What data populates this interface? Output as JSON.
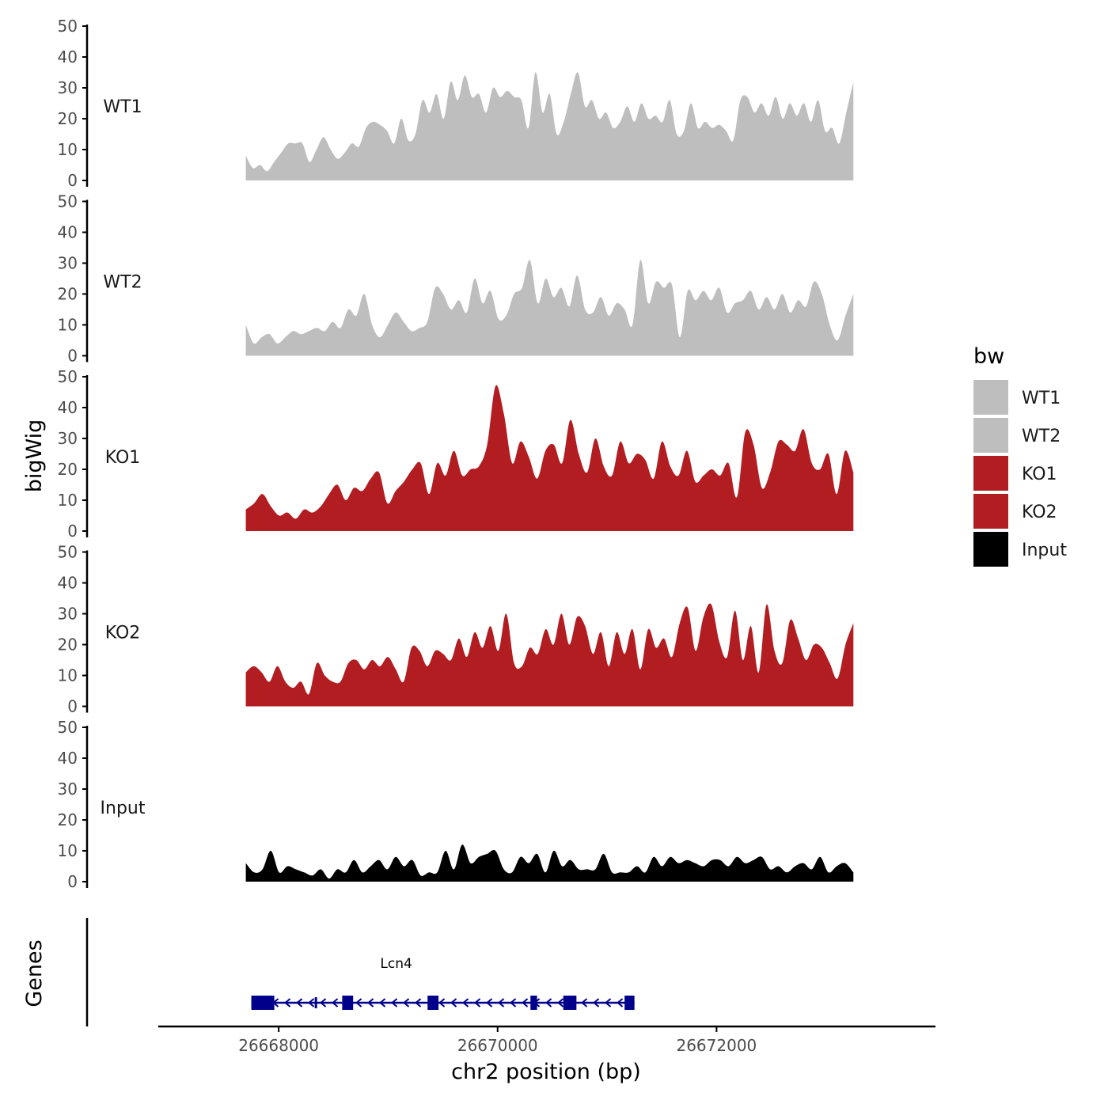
{
  "chart_data": {
    "type": "area",
    "title": "",
    "ylabel": "bigWig",
    "genes_label": "Genes",
    "xlabel": "chr2 position (bp)",
    "xlim": [
      26666900,
      26674000
    ],
    "ylim": [
      0,
      50
    ],
    "yticks": [
      0,
      10,
      20,
      30,
      40,
      50
    ],
    "xticks": [
      26668000,
      26670000,
      26672000
    ],
    "data_range": [
      26667700,
      26673250
    ],
    "legend": {
      "title": "bw",
      "position": "right",
      "entries": [
        {
          "label": "WT1",
          "color": "#bebebe"
        },
        {
          "label": "WT2",
          "color": "#bebebe"
        },
        {
          "label": "KO1",
          "color": "#b21d21"
        },
        {
          "label": "KO2",
          "color": "#b21d21"
        },
        {
          "label": "Input",
          "color": "#000000"
        }
      ]
    },
    "series": [
      {
        "name": "WT1",
        "color": "#bebebe",
        "values": [
          8,
          4,
          5,
          3,
          6,
          9,
          12,
          12,
          12,
          6,
          10,
          14,
          10,
          7,
          9,
          12,
          11,
          17,
          19,
          18,
          16,
          12,
          20,
          13,
          15,
          26,
          22,
          28,
          20,
          32,
          26,
          34,
          27,
          28,
          22,
          30,
          27,
          29,
          27,
          26,
          17,
          35,
          22,
          28,
          15,
          19,
          28,
          35,
          24,
          26,
          20,
          22,
          17,
          19,
          24,
          19,
          25,
          20,
          21,
          19,
          26,
          15,
          16,
          25,
          17,
          19,
          17,
          18,
          16,
          13,
          26,
          27,
          22,
          25,
          21,
          27,
          20,
          25,
          21,
          25,
          19,
          26,
          16,
          17,
          12,
          22,
          32
        ]
      },
      {
        "name": "WT2",
        "color": "#bebebe",
        "values": [
          10,
          4,
          6,
          7,
          4,
          6,
          8,
          7,
          8,
          9,
          8,
          11,
          9,
          15,
          13,
          20,
          10,
          6,
          10,
          14,
          11,
          8,
          9,
          11,
          22,
          20,
          15,
          18,
          14,
          25,
          17,
          21,
          12,
          13,
          20,
          22,
          31,
          17,
          25,
          19,
          22,
          16,
          26,
          15,
          14,
          19,
          13,
          17,
          15,
          10,
          31,
          17,
          24,
          22,
          23,
          6,
          21,
          18,
          21,
          18,
          22,
          14,
          17,
          18,
          21,
          15,
          19,
          15,
          20,
          14,
          18,
          16,
          24,
          20,
          10,
          5,
          13,
          20
        ]
      },
      {
        "name": "KO1",
        "color": "#b21d21",
        "values": [
          7,
          9,
          12,
          8,
          5,
          6,
          4,
          7,
          6,
          8,
          12,
          15,
          10,
          14,
          13,
          17,
          19,
          9,
          13,
          16,
          20,
          22,
          12,
          22,
          18,
          26,
          18,
          20,
          21,
          28,
          47,
          38,
          22,
          29,
          24,
          17,
          26,
          28,
          22,
          36,
          25,
          19,
          30,
          21,
          18,
          29,
          22,
          25,
          23,
          17,
          29,
          21,
          18,
          26,
          16,
          18,
          20,
          18,
          22,
          11,
          32,
          28,
          14,
          19,
          29,
          28,
          26,
          33,
          22,
          20,
          25,
          12,
          26,
          19
        ]
      },
      {
        "name": "KO2",
        "color": "#b21d21",
        "values": [
          11,
          13,
          11,
          8,
          13,
          8,
          6,
          8,
          4,
          14,
          10,
          8,
          8,
          14,
          15,
          12,
          15,
          13,
          16,
          12,
          8,
          19,
          18,
          13,
          18,
          17,
          15,
          22,
          16,
          24,
          19,
          26,
          18,
          30,
          14,
          13,
          19,
          17,
          25,
          20,
          30,
          20,
          29,
          26,
          17,
          24,
          13,
          24,
          17,
          25,
          12,
          25,
          19,
          22,
          16,
          27,
          32,
          18,
          29,
          33,
          21,
          16,
          31,
          15,
          26,
          11,
          33,
          18,
          14,
          28,
          22,
          15,
          20,
          19,
          14,
          9,
          20,
          27
        ]
      },
      {
        "name": "Input",
        "color": "#000000",
        "values": [
          6,
          3,
          4,
          10,
          3,
          5,
          4,
          3,
          2,
          4,
          1,
          4,
          3,
          7,
          3,
          5,
          7,
          4,
          8,
          5,
          7,
          2,
          3,
          3,
          10,
          4,
          12,
          6,
          8,
          9,
          10,
          4,
          3,
          8,
          6,
          9,
          3,
          10,
          5,
          7,
          4,
          4,
          4,
          9,
          3,
          3,
          3,
          5,
          3,
          8,
          5,
          8,
          6,
          7,
          6,
          5,
          7,
          7,
          5,
          8,
          6,
          7,
          8,
          4,
          5,
          3,
          5,
          6,
          4,
          8,
          3,
          5,
          6,
          3
        ]
      }
    ],
    "gene": {
      "name": "Lcn4",
      "color": "#00008b",
      "strand": "-",
      "start": 26667750,
      "end": 26671250,
      "exons": [
        [
          26667750,
          26667960
        ],
        [
          26668580,
          26668680
        ],
        [
          26669360,
          26669460
        ],
        [
          26670300,
          26670360
        ],
        [
          26670600,
          26670720
        ],
        [
          26671160,
          26671250
        ]
      ],
      "small_markers": [
        26668340
      ]
    }
  }
}
